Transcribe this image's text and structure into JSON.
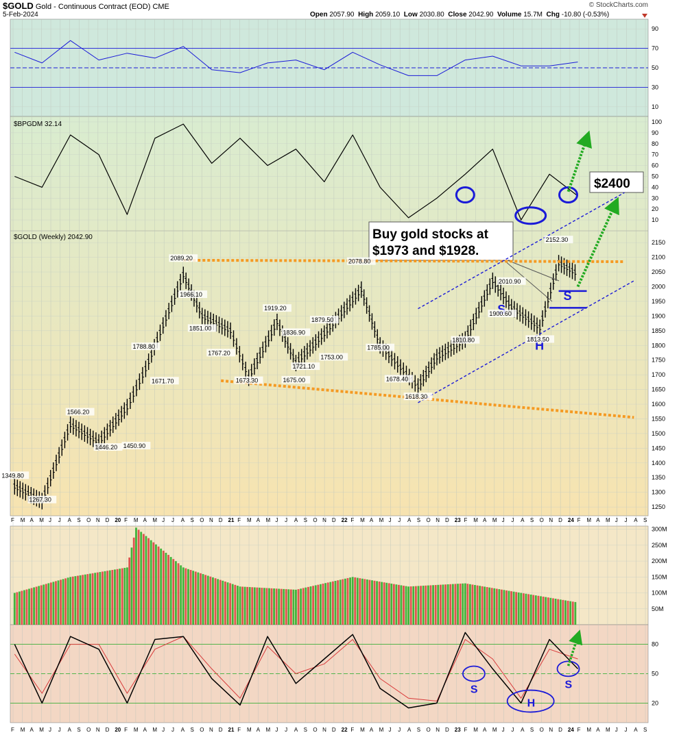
{
  "header": {
    "symbol": "$GOLD",
    "name": "Gold - Continuous Contract (EOD)",
    "exchange": "CME",
    "date": "5-Feb-2024",
    "open_label": "Open",
    "open": "2057.90",
    "high_label": "High",
    "high": "2059.10",
    "low_label": "Low",
    "low": "2030.80",
    "close_label": "Close",
    "close": "2042.90",
    "volume_label": "Volume",
    "volume": "15.7M",
    "chg_label": "Chg",
    "chg": "-10.80 (-0.53%)",
    "watermark": "© StockCharts.com"
  },
  "colors": {
    "rsi_bg": "#cfe8dc",
    "gold_top": "#d9ecd0",
    "gold_bottom": "#f7e3b0",
    "vol_bg": "#f4e7c7",
    "stoch_bg": "#f3d7c4",
    "blue": "#1a1ad8",
    "orange": "#f59a23",
    "green": "#22aa22",
    "red": "#d83a3a"
  },
  "chart_data": [
    {
      "type": "line",
      "panel": "rsi",
      "title": "",
      "y_ticks": [
        "90",
        "70",
        "50",
        "30",
        "10"
      ],
      "ylim": [
        0,
        100
      ],
      "reference_lines": [
        70,
        50,
        30
      ],
      "x": [
        "2019-02",
        "2019-05",
        "2019-08",
        "2019-11",
        "2020-02",
        "2020-05",
        "2020-08",
        "2020-11",
        "2021-02",
        "2021-05",
        "2021-08",
        "2021-11",
        "2022-02",
        "2022-05",
        "2022-08",
        "2022-11",
        "2023-02",
        "2023-05",
        "2023-08",
        "2023-11",
        "2024-02"
      ],
      "values": [
        66,
        55,
        78,
        58,
        65,
        60,
        72,
        48,
        45,
        55,
        58,
        48,
        66,
        53,
        42,
        42,
        58,
        62,
        52,
        52,
        56
      ]
    },
    {
      "type": "line",
      "panel": "bpgdm",
      "title": "$BPGDM 32.14",
      "y_ticks": [
        "100",
        "90",
        "80",
        "70",
        "60",
        "50",
        "40",
        "30",
        "20",
        "10"
      ],
      "ylim": [
        0,
        105
      ],
      "x": [
        "2019-02",
        "2019-05",
        "2019-08",
        "2019-11",
        "2020-02",
        "2020-05",
        "2020-08",
        "2020-11",
        "2021-02",
        "2021-05",
        "2021-08",
        "2021-11",
        "2022-02",
        "2022-05",
        "2022-08",
        "2022-11",
        "2023-02",
        "2023-05",
        "2023-08",
        "2023-11",
        "2024-02"
      ],
      "values": [
        50,
        40,
        88,
        70,
        15,
        85,
        98,
        62,
        85,
        60,
        75,
        45,
        88,
        40,
        12,
        30,
        52,
        75,
        10,
        52,
        32
      ],
      "annotations": [
        {
          "type": "circle",
          "date": "2023-02",
          "value": 33
        },
        {
          "type": "ellipse",
          "date": "2023-09",
          "value": 14
        },
        {
          "type": "circle",
          "date": "2024-01",
          "value": 33
        },
        {
          "type": "arrow",
          "from_date": "2024-01",
          "from_value": 36,
          "to_date": "2024-03",
          "to_value": 85
        },
        {
          "type": "label",
          "text": "$2400"
        }
      ]
    },
    {
      "type": "ohlc",
      "panel": "price",
      "title": "$GOLD (Weekly) 2042.90",
      "y_ticks": [
        "2150",
        "2100",
        "2050",
        "2000",
        "1950",
        "1900",
        "1850",
        "1800",
        "1750",
        "1700",
        "1650",
        "1600",
        "1550",
        "1500",
        "1450",
        "1400",
        "1350",
        "1300",
        "1250"
      ],
      "ylim": [
        1220,
        2190
      ],
      "x": [
        "2019-02",
        "2019-05",
        "2019-08",
        "2019-11",
        "2020-02",
        "2020-04",
        "2020-08",
        "2020-10",
        "2021-01",
        "2021-03",
        "2021-06",
        "2021-08",
        "2021-11",
        "2022-03",
        "2022-05",
        "2022-09",
        "2022-11",
        "2023-02",
        "2023-05",
        "2023-07",
        "2023-10",
        "2023-12",
        "2024-02"
      ],
      "values": [
        1320,
        1270,
        1530,
        1470,
        1590,
        1720,
        2040,
        1900,
        1850,
        1690,
        1880,
        1740,
        1840,
        1990,
        1800,
        1660,
        1760,
        1820,
        2020,
        1930,
        1860,
        2080,
        2043
      ],
      "price_labels": [
        {
          "text": "1349.80",
          "date": "2019-02",
          "value": 1349.8
        },
        {
          "text": "1267.30",
          "date": "2019-05",
          "value": 1267.3
        },
        {
          "text": "1566.20",
          "date": "2019-09",
          "value": 1566.2
        },
        {
          "text": "1446.20",
          "date": "2019-12",
          "value": 1446.2
        },
        {
          "text": "1450.90",
          "date": "2020-03",
          "value": 1450.9
        },
        {
          "text": "1788.80",
          "date": "2020-04",
          "value": 1788.8
        },
        {
          "text": "1671.70",
          "date": "2020-06",
          "value": 1671.7
        },
        {
          "text": "2089.20",
          "date": "2020-08",
          "value": 2089.2
        },
        {
          "text": "1966.10",
          "date": "2020-09",
          "value": 1966.1
        },
        {
          "text": "1851.00",
          "date": "2020-10",
          "value": 1851.0
        },
        {
          "text": "1767.20",
          "date": "2020-12",
          "value": 1767.2
        },
        {
          "text": "1673.30",
          "date": "2021-03",
          "value": 1673.3
        },
        {
          "text": "1919.20",
          "date": "2021-06",
          "value": 1919.2
        },
        {
          "text": "1836.90",
          "date": "2021-08",
          "value": 1836.9
        },
        {
          "text": "1675.00",
          "date": "2021-08",
          "value": 1675.0
        },
        {
          "text": "1721.10",
          "date": "2021-09",
          "value": 1721.1
        },
        {
          "text": "1879.50",
          "date": "2021-11",
          "value": 1879.5
        },
        {
          "text": "1753.00",
          "date": "2021-12",
          "value": 1753.0
        },
        {
          "text": "2078.80",
          "date": "2022-03",
          "value": 2078.8
        },
        {
          "text": "1785.00",
          "date": "2022-05",
          "value": 1785.0
        },
        {
          "text": "1678.40",
          "date": "2022-07",
          "value": 1678.4
        },
        {
          "text": "1618.30",
          "date": "2022-09",
          "value": 1618.3
        },
        {
          "text": "1810.80",
          "date": "2023-02",
          "value": 1810.8
        },
        {
          "text": "1900.60",
          "date": "2023-06",
          "value": 1900.6
        },
        {
          "text": "2010.90",
          "date": "2023-07",
          "value": 2010.9
        },
        {
          "text": "1813.50",
          "date": "2023-10",
          "value": 1813.5
        },
        {
          "text": "2152.30",
          "date": "2023-12",
          "value": 2152.3
        }
      ],
      "annotations": [
        {
          "type": "callout",
          "text_line1": "Buy gold stocks at",
          "text_line2": "$1973 and $1928."
        },
        {
          "type": "label",
          "text": "S",
          "date": "2023-06",
          "value": 1908
        },
        {
          "type": "label",
          "text": "H",
          "date": "2023-10",
          "value": 1785
        },
        {
          "type": "label",
          "text": "S",
          "date": "2024-01",
          "value": 1955
        },
        {
          "type": "hline",
          "from_date": "2023-12",
          "to_date": "2024-03",
          "value": 1985
        },
        {
          "type": "hline",
          "from_date": "2023-11",
          "to_date": "2024-03",
          "value": 1928
        },
        {
          "type": "trend",
          "kind": "resistance",
          "from_date": "2020-08",
          "from_value": 2090,
          "to_date": "2024-07",
          "to_value": 2085
        },
        {
          "type": "trend",
          "kind": "support",
          "from_date": "2020-12",
          "from_value": 1680,
          "to_date": "2024-08",
          "to_value": 1555
        },
        {
          "type": "channel",
          "from_date": "2022-09",
          "from_value": 1605,
          "to_date": "2024-08",
          "to_value": 2020
        },
        {
          "type": "channel",
          "from_date": "2022-09",
          "from_value": 1925,
          "to_date": "2024-07",
          "to_value": 2320
        },
        {
          "type": "arrow",
          "from_date": "2024-02",
          "from_value": 2000,
          "to_date": "2024-06",
          "to_value": 2280
        }
      ]
    },
    {
      "type": "bar",
      "panel": "volume",
      "title": "",
      "y_ticks": [
        "300M",
        "250M",
        "200M",
        "150M",
        "100M",
        "50M"
      ],
      "ylim": [
        0,
        310
      ],
      "x": [
        "2019-02",
        "2019-08",
        "2020-02",
        "2020-03",
        "2020-08",
        "2021-02",
        "2021-08",
        "2022-02",
        "2022-08",
        "2023-02",
        "2023-08",
        "2024-02"
      ],
      "values": [
        100,
        150,
        180,
        305,
        180,
        120,
        110,
        150,
        120,
        130,
        100,
        70
      ]
    },
    {
      "type": "line",
      "panel": "stochastic",
      "title": "",
      "y_ticks": [
        "80",
        "50",
        "20"
      ],
      "ylim": [
        0,
        100
      ],
      "reference_lines": [
        80,
        50,
        20
      ],
      "x": [
        "2019-02",
        "2019-05",
        "2019-08",
        "2019-11",
        "2020-02",
        "2020-05",
        "2020-08",
        "2020-11",
        "2021-02",
        "2021-05",
        "2021-08",
        "2021-11",
        "2022-02",
        "2022-05",
        "2022-08",
        "2022-11",
        "2023-02",
        "2023-05",
        "2023-08",
        "2023-11",
        "2024-02"
      ],
      "series": [
        {
          "values": [
            80,
            20,
            88,
            75,
            20,
            85,
            88,
            45,
            18,
            88,
            40,
            65,
            90,
            35,
            15,
            20,
            92,
            55,
            20,
            85,
            55
          ]
        },
        {
          "values": [
            70,
            30,
            80,
            80,
            30,
            75,
            88,
            55,
            25,
            78,
            50,
            60,
            85,
            45,
            25,
            22,
            85,
            65,
            25,
            75,
            65
          ]
        }
      ],
      "annotations": [
        {
          "type": "ellipse",
          "label": "S",
          "date": "2023-03",
          "value": 50
        },
        {
          "type": "ellipse",
          "label": "H",
          "date": "2023-09",
          "value": 22
        },
        {
          "type": "ellipse",
          "label": "S",
          "date": "2024-01",
          "value": 55
        },
        {
          "type": "arrow",
          "from_date": "2024-01",
          "from_value": 58,
          "to_date": "2024-02",
          "to_value": 88
        }
      ]
    }
  ],
  "axis": {
    "month_letters": [
      "F",
      "M",
      "A",
      "M",
      "J",
      "J",
      "A",
      "S",
      "O",
      "N",
      "D",
      "20",
      "F",
      "M",
      "A",
      "M",
      "J",
      "J",
      "A",
      "S",
      "O",
      "N",
      "D",
      "21",
      "F",
      "M",
      "A",
      "M",
      "J",
      "J",
      "A",
      "S",
      "O",
      "N",
      "D",
      "22",
      "F",
      "M",
      "A",
      "M",
      "J",
      "J",
      "A",
      "S",
      "O",
      "N",
      "D",
      "23",
      "F",
      "M",
      "A",
      "M",
      "J",
      "J",
      "A",
      "S",
      "O",
      "N",
      "D",
      "24",
      "F",
      "M",
      "A",
      "M",
      "J",
      "J",
      "A",
      "S"
    ],
    "year_labels": [
      "20",
      "21",
      "22",
      "23",
      "24"
    ]
  }
}
